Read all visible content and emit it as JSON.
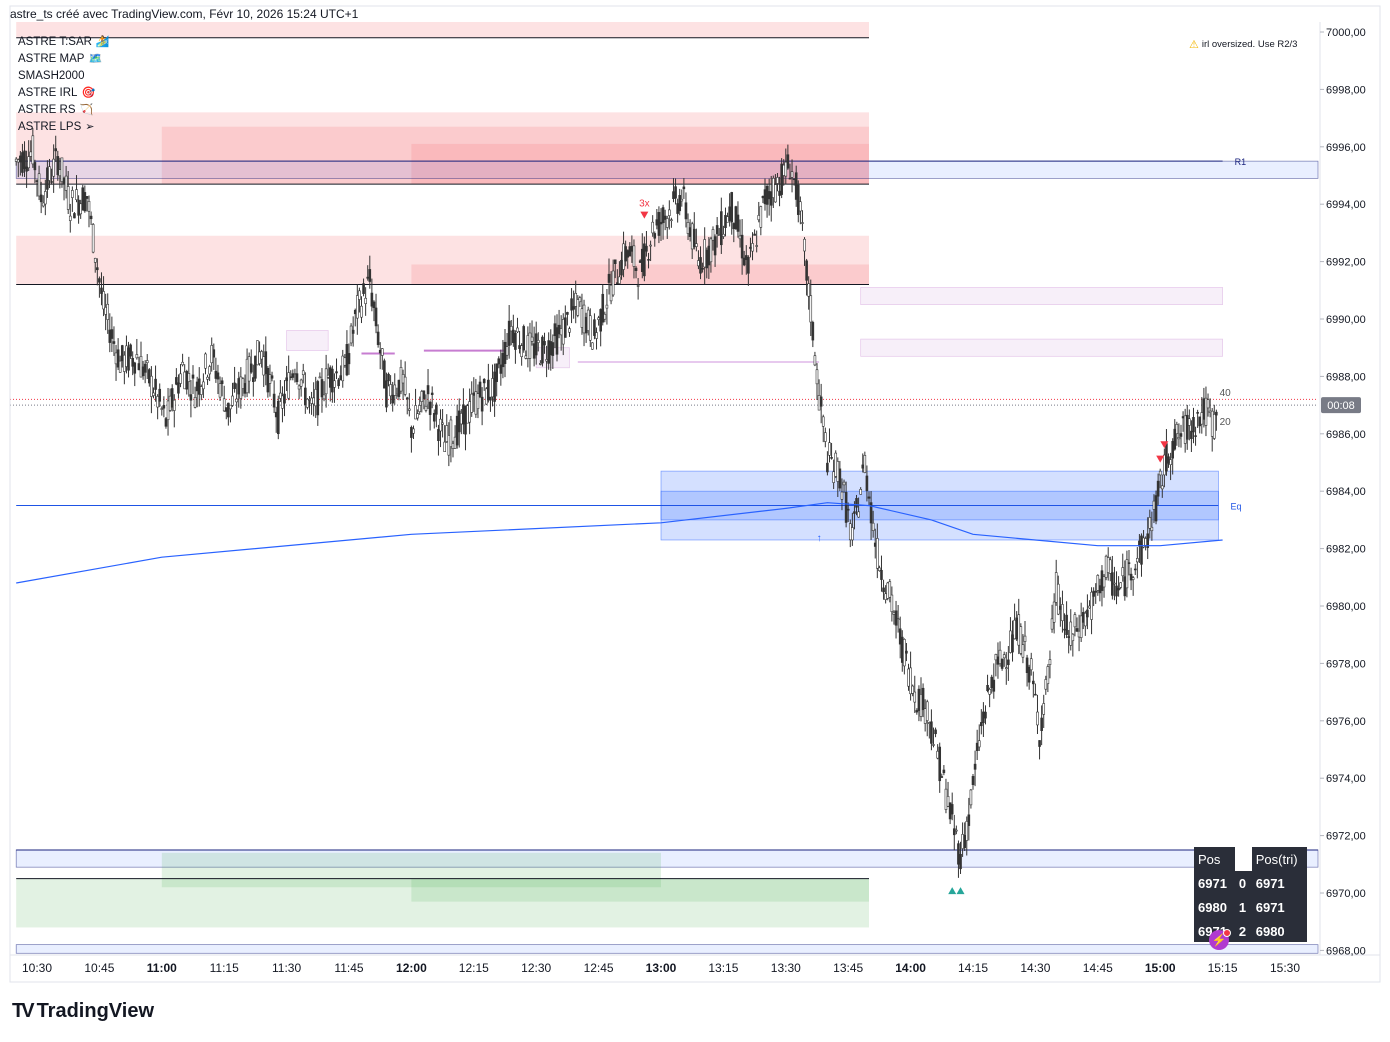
{
  "header": {
    "title": "astre_ts créé avec TradingView.com, Févr 10, 2026 15:24 UTC+1"
  },
  "indicators": [
    {
      "label": "ASTRE T:SAR",
      "icon": "🏄"
    },
    {
      "label": "ASTRE MAP",
      "icon": "🗺️"
    },
    {
      "label": "SMASH2000",
      "icon": ""
    },
    {
      "label": "ASTRE IRL",
      "icon": "🎯"
    },
    {
      "label": "ASTRE RS",
      "icon": "🏹"
    },
    {
      "label": "ASTRE LPS",
      "icon": "➢"
    }
  ],
  "warning": {
    "icon": "warning-triangle",
    "text": "irl oversized. Use R2/3"
  },
  "position_table": {
    "headers": [
      "Pos",
      "",
      "Pos(tri)"
    ],
    "rows": [
      [
        "6971",
        "0",
        "6971"
      ],
      [
        "6980",
        "1",
        "6971"
      ],
      [
        "6971",
        "2",
        "6980"
      ]
    ]
  },
  "logo": {
    "text": "TradingView"
  },
  "colors": {
    "candle": "#333333",
    "ma_line": "#2962ff",
    "supply_zone": "#f77c80",
    "demand_zone": "#4caf50",
    "eq_zone": "#2962ff",
    "sell_marker": "#f23645",
    "buy_marker": "#26a69a",
    "price_badge": "#787b86"
  },
  "chart_data": {
    "type": "candlestick",
    "title": "",
    "xlabel": "",
    "ylabel": "",
    "ylim": [
      6967.8,
      7000.4
    ],
    "y_ticks": [
      "7000,00",
      "6998,00",
      "6996,00",
      "6994,00",
      "6992,00",
      "6990,00",
      "6988,00",
      "6986,00",
      "6984,00",
      "6982,00",
      "6980,00",
      "6978,00",
      "6976,00",
      "6974,00",
      "6972,00",
      "6970,00",
      "6968,00"
    ],
    "x_ticks": [
      {
        "label": "10:30",
        "bold": false
      },
      {
        "label": "10:45",
        "bold": false
      },
      {
        "label": "11:00",
        "bold": true
      },
      {
        "label": "11:15",
        "bold": false
      },
      {
        "label": "11:30",
        "bold": false
      },
      {
        "label": "11:45",
        "bold": false
      },
      {
        "label": "12:00",
        "bold": true
      },
      {
        "label": "12:15",
        "bold": false
      },
      {
        "label": "12:30",
        "bold": false
      },
      {
        "label": "12:45",
        "bold": false
      },
      {
        "label": "13:00",
        "bold": true
      },
      {
        "label": "13:15",
        "bold": false
      },
      {
        "label": "13:30",
        "bold": false
      },
      {
        "label": "13:45",
        "bold": false
      },
      {
        "label": "14:00",
        "bold": true
      },
      {
        "label": "14:15",
        "bold": false
      },
      {
        "label": "14:30",
        "bold": false
      },
      {
        "label": "14:45",
        "bold": false
      },
      {
        "label": "15:00",
        "bold": true
      },
      {
        "label": "15:15",
        "bold": false
      },
      {
        "label": "15:30",
        "bold": false
      }
    ],
    "price_path": [
      [
        "10:25",
        6995.5
      ],
      [
        "10:29",
        6995.8
      ],
      [
        "10:31",
        6994.2
      ],
      [
        "10:35",
        6995.6
      ],
      [
        "10:38",
        6994.0
      ],
      [
        "10:42",
        6994.3
      ],
      [
        "10:46",
        6990.4
      ],
      [
        "10:50",
        6988.5
      ],
      [
        "10:54",
        6988.7
      ],
      [
        "10:58",
        6987.6
      ],
      [
        "11:01",
        6986.4
      ],
      [
        "11:05",
        6988.3
      ],
      [
        "11:08",
        6987.5
      ],
      [
        "11:12",
        6988.7
      ],
      [
        "11:16",
        6986.8
      ],
      [
        "11:20",
        6987.9
      ],
      [
        "11:24",
        6988.9
      ],
      [
        "11:28",
        6986.6
      ],
      [
        "11:32",
        6988.5
      ],
      [
        "11:36",
        6986.8
      ],
      [
        "11:40",
        6988.0
      ],
      [
        "11:44",
        6988.2
      ],
      [
        "11:47",
        6990.3
      ],
      [
        "11:50",
        6991.3
      ],
      [
        "11:54",
        6987.5
      ],
      [
        "11:58",
        6987.8
      ],
      [
        "12:00",
        6986.2
      ],
      [
        "12:04",
        6987.4
      ],
      [
        "12:08",
        6985.7
      ],
      [
        "12:12",
        6986.3
      ],
      [
        "12:16",
        6987.3
      ],
      [
        "12:20",
        6987.6
      ],
      [
        "12:24",
        6989.7
      ],
      [
        "12:28",
        6989.0
      ],
      [
        "12:32",
        6988.9
      ],
      [
        "12:36",
        6989.5
      ],
      [
        "12:40",
        6990.5
      ],
      [
        "12:44",
        6989.4
      ],
      [
        "12:48",
        6991.2
      ],
      [
        "12:52",
        6992.4
      ],
      [
        "12:55",
        6991.6
      ],
      [
        "12:58",
        6993.1
      ],
      [
        "13:01",
        6993.6
      ],
      [
        "13:05",
        6994.3
      ],
      [
        "13:09",
        6992.0
      ],
      [
        "13:13",
        6992.7
      ],
      [
        "13:17",
        6993.9
      ],
      [
        "13:21",
        6991.7
      ],
      [
        "13:25",
        6994.2
      ],
      [
        "13:29",
        6994.9
      ],
      [
        "13:31",
        6995.4
      ],
      [
        "13:33",
        6994.2
      ],
      [
        "13:36",
        6990.3
      ],
      [
        "13:38",
        6987.3
      ],
      [
        "13:40",
        6985.2
      ],
      [
        "13:43",
        6984.6
      ],
      [
        "13:46",
        6982.3
      ],
      [
        "13:49",
        6985.0
      ],
      [
        "13:52",
        6981.8
      ],
      [
        "13:55",
        6980.3
      ],
      [
        "13:58",
        6978.6
      ],
      [
        "14:01",
        6977.0
      ],
      [
        "14:04",
        6976.4
      ],
      [
        "14:07",
        6974.5
      ],
      [
        "14:10",
        6972.5
      ],
      [
        "14:12",
        6971.3
      ],
      [
        "14:14",
        6972.7
      ],
      [
        "14:17",
        6975.8
      ],
      [
        "14:20",
        6977.6
      ],
      [
        "14:23",
        6978.4
      ],
      [
        "14:26",
        6979.2
      ],
      [
        "14:29",
        6977.6
      ],
      [
        "14:31",
        6975.7
      ],
      [
        "14:33",
        6977.4
      ],
      [
        "14:35",
        6980.6
      ],
      [
        "14:38",
        6978.8
      ],
      [
        "14:41",
        6979.4
      ],
      [
        "14:44",
        6980.1
      ],
      [
        "14:47",
        6981.3
      ],
      [
        "14:50",
        6980.5
      ],
      [
        "14:53",
        6981.4
      ],
      [
        "14:56",
        6982.0
      ],
      [
        "14:59",
        6983.5
      ],
      [
        "15:02",
        6985.4
      ],
      [
        "15:05",
        6986.0
      ],
      [
        "15:08",
        6986.4
      ],
      [
        "15:11",
        6986.8
      ],
      [
        "15:13",
        6986.3
      ],
      [
        "15:14",
        6987.0
      ]
    ],
    "ma_path": [
      [
        "10:25",
        6980.8
      ],
      [
        "11:00",
        6981.7
      ],
      [
        "12:00",
        6982.5
      ],
      [
        "13:00",
        6982.9
      ],
      [
        "13:30",
        6983.4
      ],
      [
        "13:40",
        6983.6
      ],
      [
        "13:50",
        6983.5
      ],
      [
        "14:05",
        6983.0
      ],
      [
        "14:15",
        6982.5
      ],
      [
        "14:30",
        6982.3
      ],
      [
        "14:45",
        6982.1
      ],
      [
        "15:00",
        6982.1
      ],
      [
        "15:15",
        6982.3
      ]
    ],
    "zones": [
      {
        "kind": "supply",
        "x0": "10:25",
        "x1": "13:50",
        "y0": 6999.8,
        "y1": 7001.0
      },
      {
        "kind": "supply",
        "x0": "10:25",
        "x1": "13:50",
        "y0": 6994.7,
        "y1": 6997.2
      },
      {
        "kind": "supply",
        "x0": "11:00",
        "x1": "13:50",
        "y0": 6994.7,
        "y1": 6996.7
      },
      {
        "kind": "supply",
        "x0": "12:00",
        "x1": "13:50",
        "y0": 6994.7,
        "y1": 6996.1
      },
      {
        "kind": "supply",
        "x0": "10:25",
        "x1": "13:50",
        "y0": 6991.2,
        "y1": 6992.9
      },
      {
        "kind": "supply",
        "x0": "12:00",
        "x1": "13:50",
        "y0": 6991.2,
        "y1": 6991.9
      },
      {
        "kind": "pivot",
        "x0": "10:25",
        "x1": "15:40",
        "y0": 6994.9,
        "y1": 6995.5
      },
      {
        "kind": "faint",
        "x0": "13:48",
        "x1": "15:15",
        "y0": 6990.5,
        "y1": 6991.1
      },
      {
        "kind": "faint",
        "x0": "13:48",
        "x1": "15:15",
        "y0": 6988.7,
        "y1": 6989.3
      },
      {
        "kind": "faint",
        "x0": "11:30",
        "x1": "11:40",
        "y0": 6988.9,
        "y1": 6989.6
      },
      {
        "kind": "faint",
        "x0": "12:30",
        "x1": "12:38",
        "y0": 6988.3,
        "y1": 6989.0
      },
      {
        "kind": "eq",
        "x0": "13:00",
        "x1": "15:14",
        "y0": 6982.3,
        "y1": 6984.7
      },
      {
        "kind": "eq",
        "x0": "13:00",
        "x1": "15:14",
        "y0": 6983.0,
        "y1": 6984.0
      },
      {
        "kind": "pivot",
        "x0": "10:25",
        "x1": "15:40",
        "y0": 6970.9,
        "y1": 6971.5
      },
      {
        "kind": "demand",
        "x0": "10:25",
        "x1": "13:50",
        "y0": 6968.8,
        "y1": 6970.5
      },
      {
        "kind": "demand",
        "x0": "11:00",
        "x1": "13:00",
        "y0": 6970.2,
        "y1": 6971.4
      },
      {
        "kind": "demand",
        "x0": "12:00",
        "x1": "13:50",
        "y0": 6969.7,
        "y1": 6970.5
      },
      {
        "kind": "pivot",
        "x0": "10:25",
        "x1": "15:40",
        "y0": 6967.9,
        "y1": 6968.2
      }
    ],
    "hlines": [
      {
        "y": 6999.8,
        "x0": "10:25",
        "x1": "13:50",
        "color": "#131722"
      },
      {
        "y": 6995.5,
        "x0": "10:25",
        "x1": "15:15",
        "color": "#1a237e",
        "label": "R1"
      },
      {
        "y": 6994.7,
        "x0": "10:25",
        "x1": "13:50",
        "color": "#131722"
      },
      {
        "y": 6991.2,
        "x0": "10:25",
        "x1": "13:50",
        "color": "#131722"
      },
      {
        "y": 6983.5,
        "x0": "10:25",
        "x1": "15:14",
        "color": "#1e53e5",
        "label": "Eq"
      },
      {
        "y": 6971.5,
        "x0": "10:25",
        "x1": "15:40",
        "color": "#1a237e"
      },
      {
        "y": 6970.5,
        "x0": "10:25",
        "x1": "13:50",
        "color": "#131722"
      }
    ],
    "short_lines": [
      {
        "y": 6988.8,
        "x0": "11:48",
        "x1": "11:56",
        "color": "#c77dd1"
      },
      {
        "y": 6988.9,
        "x0": "12:03",
        "x1": "12:23",
        "color": "#c77dd1"
      },
      {
        "y": 6988.5,
        "x0": "12:40",
        "x1": "13:38",
        "color": "#e7c9ee"
      }
    ],
    "markers": [
      {
        "type": "sell",
        "t": "12:56",
        "y": 6993.6,
        "label": "3x"
      },
      {
        "type": "sell",
        "t": "15:00",
        "y": 6985.1,
        "label": ""
      },
      {
        "type": "sell",
        "t": "15:01",
        "y": 6985.6,
        "label": ""
      },
      {
        "type": "buy",
        "t": "14:10",
        "y": 6970.1,
        "label": ""
      },
      {
        "type": "buy",
        "t": "14:12",
        "y": 6970.1,
        "label": ""
      },
      {
        "type": "arrow-up",
        "t": "13:38",
        "y": 6982.4,
        "label": ""
      }
    ],
    "last_price": {
      "y": 6987.0,
      "countdown": "00:08",
      "labels": [
        "40",
        "20"
      ]
    },
    "prev_close_line": 6987.2
  }
}
